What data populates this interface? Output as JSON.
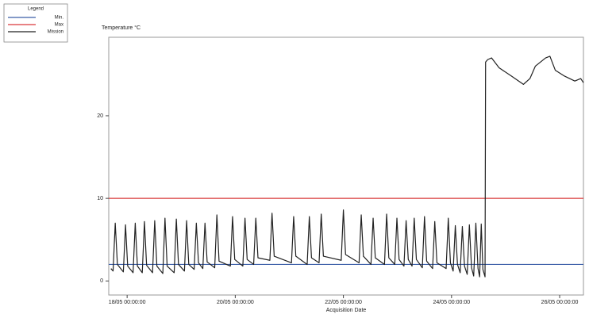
{
  "chart_data": {
    "type": "line",
    "title": "Temperature °C",
    "xlabel": "Acquisition Date",
    "legend_title": "Legend",
    "legend_position": "top left",
    "thresholds": [
      {
        "name": "Min.",
        "value": 2,
        "color": "#3b5ea8"
      },
      {
        "name": "Max",
        "value": 10,
        "color": "#d9383a"
      }
    ],
    "x": [
      17.7,
      17.74,
      17.78,
      17.82,
      17.93,
      17.97,
      18.01,
      18.11,
      18.15,
      18.19,
      18.28,
      18.32,
      18.36,
      18.47,
      18.51,
      18.55,
      18.66,
      18.7,
      18.74,
      18.87,
      18.91,
      18.95,
      19.06,
      19.1,
      19.14,
      19.24,
      19.28,
      19.32,
      19.4,
      19.44,
      19.48,
      19.62,
      19.66,
      19.7,
      19.91,
      19.95,
      19.99,
      20.14,
      20.18,
      20.22,
      20.34,
      20.38,
      20.42,
      20.64,
      20.68,
      20.72,
      21.04,
      21.08,
      21.12,
      21.33,
      21.37,
      21.41,
      21.55,
      21.59,
      21.63,
      21.96,
      22.0,
      22.04,
      22.29,
      22.33,
      22.37,
      22.51,
      22.55,
      22.59,
      22.76,
      22.8,
      22.84,
      22.95,
      22.99,
      23.03,
      23.12,
      23.16,
      23.2,
      23.27,
      23.31,
      23.35,
      23.46,
      23.5,
      23.54,
      23.65,
      23.69,
      23.73,
      23.9,
      23.94,
      23.98,
      24.03,
      24.07,
      24.11,
      24.16,
      24.2,
      24.24,
      24.29,
      24.33,
      24.37,
      24.41,
      24.45,
      24.49,
      24.52,
      24.55,
      24.58,
      24.62,
      24.63,
      24.67,
      24.74,
      24.88,
      25.11,
      25.33,
      25.45,
      25.55,
      25.74,
      25.82,
      25.92,
      26.09,
      26.28,
      26.39,
      26.44
    ],
    "series": [
      {
        "name": "Mission",
        "color": "#222222",
        "values": [
          1.5,
          1.2,
          7,
          2,
          1.1,
          6.8,
          1.8,
          1,
          7,
          1.8,
          1,
          7.2,
          1.9,
          1,
          7.3,
          1.8,
          0.9,
          7.6,
          1.8,
          1,
          7.5,
          2,
          1.2,
          7.3,
          2,
          1.4,
          7,
          2.2,
          1.5,
          7,
          2.3,
          1.6,
          8,
          2.4,
          1.8,
          7.8,
          2.6,
          1.8,
          7.6,
          2.6,
          2,
          7.6,
          2.8,
          2.5,
          8.2,
          3,
          2.2,
          7.8,
          3,
          2,
          7.8,
          2.8,
          2.2,
          8.1,
          3,
          2.5,
          8.6,
          3.2,
          2.2,
          8,
          3,
          2,
          7.6,
          2.8,
          2,
          8.1,
          2.8,
          2,
          7.6,
          2.6,
          1.8,
          7.3,
          2.6,
          1.8,
          7.6,
          2.6,
          1.6,
          7.8,
          2.4,
          1.5,
          7.2,
          2.2,
          1.5,
          7.6,
          2.2,
          1.2,
          6.7,
          2,
          1,
          6.6,
          1.8,
          0.8,
          6.8,
          1.6,
          0.6,
          7,
          1.5,
          0.5,
          6.9,
          1.4,
          0.5,
          26.5,
          26.8,
          27,
          25.8,
          24.8,
          23.8,
          24.5,
          26,
          27,
          27.2,
          25.5,
          24.8,
          24.2,
          24.5,
          24
        ]
      }
    ],
    "xlim": [
      17.66,
      26.44
    ],
    "xticks": [
      {
        "value": 18,
        "label": "18/05 00:00:00"
      },
      {
        "value": 20,
        "label": "20/05 00:00:00"
      },
      {
        "value": 22,
        "label": "22/05 00:00:00"
      },
      {
        "value": 24,
        "label": "24/05 00:00:00"
      },
      {
        "value": 26,
        "label": "26/05 00:00:00"
      }
    ],
    "ylim": [
      -1.7,
      29.5
    ],
    "yticks": [
      0,
      10,
      20
    ]
  }
}
